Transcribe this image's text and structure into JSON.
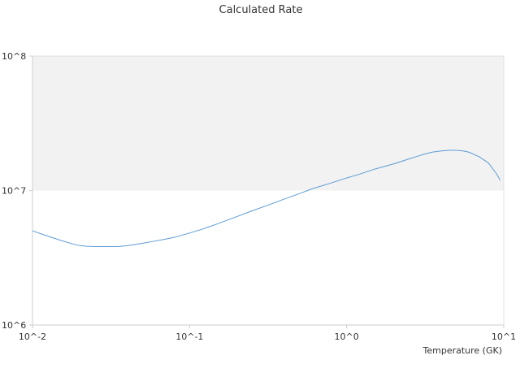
{
  "chart_data": {
    "type": "line",
    "title": "Calculated Rate",
    "xlabel": "Temperature (GK)",
    "ylabel": "",
    "x_scale": "log",
    "y_scale": "log",
    "xlim": [
      0.01,
      10
    ],
    "ylim": [
      1000000,
      100000000
    ],
    "x_ticks": [
      {
        "value": 0.01,
        "label": "10^-2"
      },
      {
        "value": 0.1,
        "label": "10^-1"
      },
      {
        "value": 1,
        "label": "10^0"
      },
      {
        "value": 10,
        "label": "10^1"
      }
    ],
    "y_ticks": [
      {
        "value": 1000000,
        "label": "10^6"
      },
      {
        "value": 10000000,
        "label": "10^7"
      },
      {
        "value": 100000000,
        "label": "10^8"
      }
    ],
    "shaded_band": {
      "from": 10000000,
      "to": 100000000,
      "color": "#f2f2f2"
    },
    "grid": false,
    "series": [
      {
        "color": "#5b9bd5",
        "x": [
          0.01,
          0.012,
          0.015,
          0.018,
          0.02,
          0.022,
          0.025,
          0.03,
          0.035,
          0.04,
          0.05,
          0.06,
          0.07,
          0.08,
          0.1,
          0.12,
          0.15,
          0.2,
          0.25,
          0.3,
          0.4,
          0.5,
          0.6,
          0.8,
          1.0,
          1.2,
          1.5,
          2.0,
          2.5,
          3.0,
          3.5,
          4.0,
          4.5,
          5.0,
          5.5,
          6.0,
          7.0,
          8.0,
          9.0,
          9.5
        ],
        "y": [
          5010000,
          4660000,
          4270000,
          4010000,
          3900000,
          3850000,
          3830000,
          3830000,
          3830000,
          3890000,
          4050000,
          4210000,
          4350000,
          4490000,
          4830000,
          5150000,
          5650000,
          6400000,
          7060000,
          7620000,
          8630000,
          9480000,
          10280000,
          11400000,
          12400000,
          13200000,
          14400000,
          15800000,
          17200000,
          18400000,
          19300000,
          19700000,
          19900000,
          19900000,
          19700000,
          19300000,
          17800000,
          16000000,
          13300000,
          11900000
        ]
      }
    ]
  }
}
